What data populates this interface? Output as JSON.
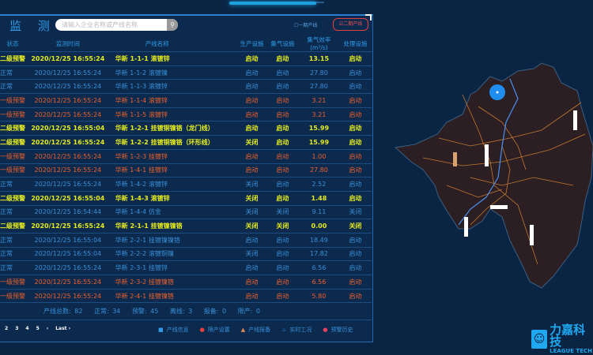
{
  "header": {
    "title": "监 测",
    "search_placeholder": "请输入企业名称或产线名称",
    "search_icon": "search-icon",
    "option1": "一期产线",
    "option2": "二期产线"
  },
  "colors": {
    "level2": "#e6ec1e",
    "level1": "#f0602a",
    "normal": "#3a8fd8",
    "background": "#0a2444"
  },
  "table": {
    "columns": [
      "状态",
      "监测时间",
      "产线名称",
      "生产设施",
      "集气设施",
      "集气效率(m³/s)",
      "处理设施"
    ],
    "rows": [
      {
        "level": "yellow",
        "status": "二级预警",
        "time": "2020/12/25 16:55:24",
        "name": "华新 1-1-1 滚镀锌",
        "prod": "启动",
        "gas": "启动",
        "eff": "13.15",
        "treat": "启动"
      },
      {
        "level": "blue",
        "status": "正常",
        "time": "2020/12/25 16:55:24",
        "name": "华新 1-1-2 滚镀镍",
        "prod": "启动",
        "gas": "启动",
        "eff": "27.80",
        "treat": "启动"
      },
      {
        "level": "blue",
        "status": "正常",
        "time": "2020/12/25 16:55:24",
        "name": "华新 1-1-3 滚镀锌",
        "prod": "启动",
        "gas": "启动",
        "eff": "27.80",
        "treat": "启动"
      },
      {
        "level": "orange",
        "status": "一级预警",
        "time": "2020/12/25 16:55:24",
        "name": "华新 1-1-4 滚镀锌",
        "prod": "启动",
        "gas": "启动",
        "eff": "3.21",
        "treat": "启动"
      },
      {
        "level": "orange",
        "status": "一级预警",
        "time": "2020/12/25 16:55:24",
        "name": "华新 1-1-5 滚镀锌",
        "prod": "启动",
        "gas": "启动",
        "eff": "3.21",
        "treat": "启动"
      },
      {
        "level": "yellow",
        "status": "二级预警",
        "time": "2020/12/25 16:55:04",
        "name": "华新 1-2-1 挂镀铜镍铬（龙门线）",
        "prod": "启动",
        "gas": "启动",
        "eff": "15.99",
        "treat": "启动"
      },
      {
        "level": "yellow",
        "status": "二级预警",
        "time": "2020/12/25 16:55:24",
        "name": "华新 1-2-2 挂镀铜镍铬（环形线）",
        "prod": "关闭",
        "gas": "启动",
        "eff": "15.99",
        "treat": "启动"
      },
      {
        "level": "orange",
        "status": "一级预警",
        "time": "2020/12/25 16:55:24",
        "name": "华新 1-2-3 挂镀锌",
        "prod": "启动",
        "gas": "启动",
        "eff": "1.00",
        "treat": "启动"
      },
      {
        "level": "orange",
        "status": "一级预警",
        "time": "2020/12/25 16:55:24",
        "name": "华新 1-4-1 挂镀锌",
        "prod": "启动",
        "gas": "启动",
        "eff": "27.80",
        "treat": "启动"
      },
      {
        "level": "blue",
        "status": "正常",
        "time": "2020/12/25 16:55:24",
        "name": "华新 1-4-2 滚镀锌",
        "prod": "关闭",
        "gas": "启动",
        "eff": "2.52",
        "treat": "启动"
      },
      {
        "level": "yellow",
        "status": "二级预警",
        "time": "2020/12/25 16:55:04",
        "name": "华新 1-4-3 滚镀锌",
        "prod": "关闭",
        "gas": "启动",
        "eff": "1.48",
        "treat": "启动"
      },
      {
        "level": "blue",
        "status": "正常",
        "time": "2020/12/25 16:54:44",
        "name": "华新 1-4-4 仿金",
        "prod": "关闭",
        "gas": "关闭",
        "eff": "9.11",
        "treat": "关闭"
      },
      {
        "level": "yellow",
        "status": "二级预警",
        "time": "2020/12/25 16:55:24",
        "name": "华新 2-1-1 挂镀镍镍铬",
        "prod": "关闭",
        "gas": "关闭",
        "eff": "0.00",
        "treat": "关闭"
      },
      {
        "level": "blue",
        "status": "正常",
        "time": "2020/12/25 16:55:04",
        "name": "华新 2-2-1 挂镀镍镍铬",
        "prod": "启动",
        "gas": "启动",
        "eff": "18.49",
        "treat": "启动"
      },
      {
        "level": "blue",
        "status": "正常",
        "time": "2020/12/25 16:55:04",
        "name": "华新 2-2-2 滚镀铜镍",
        "prod": "关闭",
        "gas": "启动",
        "eff": "17.82",
        "treat": "启动"
      },
      {
        "level": "blue",
        "status": "正常",
        "time": "2020/12/25 16:55:24",
        "name": "华新 2-3-1 挂镀锌",
        "prod": "启动",
        "gas": "启动",
        "eff": "6.56",
        "treat": "启动"
      },
      {
        "level": "orange",
        "status": "一级预警",
        "time": "2020/12/25 16:55:24",
        "name": "华新 2-3-2 挂镀镍铬",
        "prod": "启动",
        "gas": "启动",
        "eff": "6.56",
        "treat": "启动"
      },
      {
        "level": "orange",
        "status": "一级预警",
        "time": "2020/12/25 16:55:24",
        "name": "华新 2-4-1 挂镀镍铬",
        "prod": "启动",
        "gas": "启动",
        "eff": "5.80",
        "treat": "启动"
      }
    ]
  },
  "stats": {
    "total": "产线总数: 82",
    "normal": "正常: 34",
    "warning": "预警: 45",
    "offline": "离线: 3",
    "report": "报备: 0",
    "stopped": "限产: 0"
  },
  "pager": {
    "pages": [
      "2",
      "3",
      "4",
      "5",
      "›",
      "Last ›"
    ]
  },
  "legend": [
    {
      "icon": "info-icon",
      "glyph": "■",
      "color": "#2f9be8",
      "label": "产线信息"
    },
    {
      "icon": "stop-production-icon",
      "glyph": "●",
      "color": "#f04040",
      "label": "限产设置"
    },
    {
      "icon": "warning-icon",
      "glyph": "▲",
      "color": "#e08a50",
      "label": "产线报备"
    },
    {
      "icon": "realtime-icon",
      "glyph": "♨",
      "color": "#2f9be8",
      "label": "实时工况"
    },
    {
      "icon": "history-icon",
      "glyph": "●",
      "color": "#f04060",
      "label": "预警历史"
    }
  ],
  "logo": {
    "cn": "力嘉科技",
    "en": "LEAGUE TECH"
  }
}
